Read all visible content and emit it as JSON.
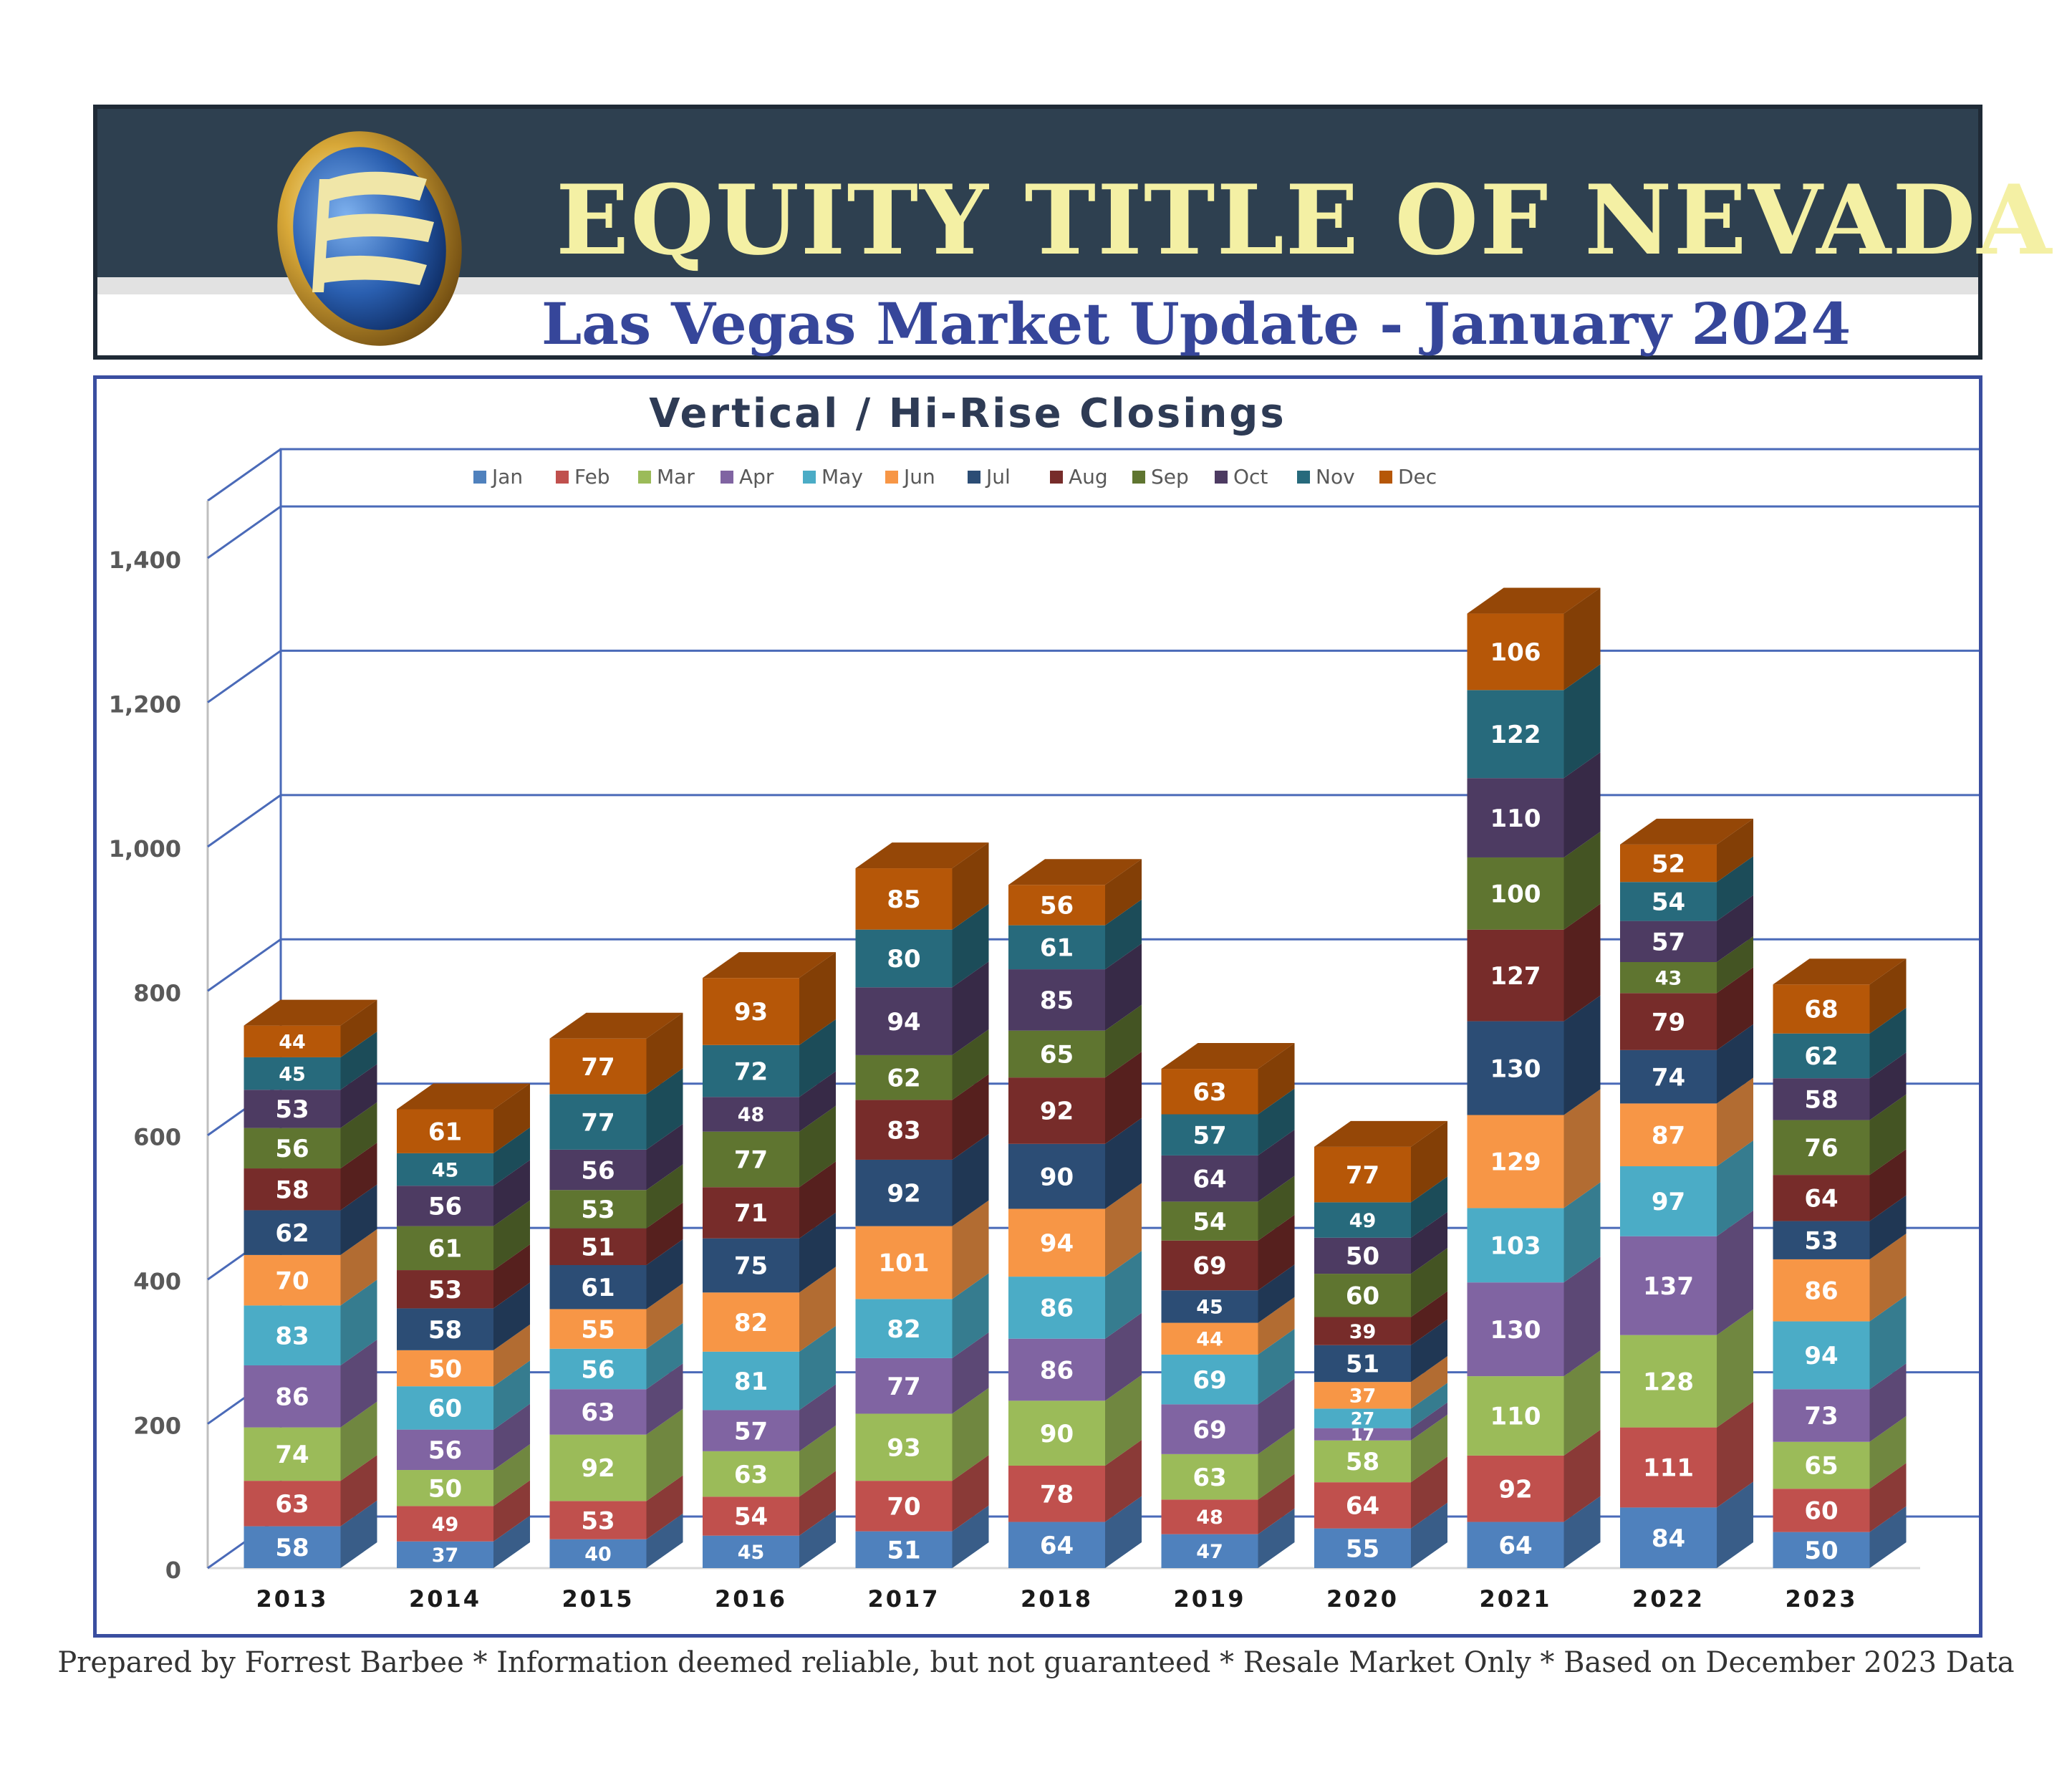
{
  "header": {
    "company_name": "EQUITY TITLE OF NEVADA",
    "report_title": "Las Vegas Market Update - January 2024"
  },
  "footer": {
    "text": "Prepared by Forrest Barbee * Information deemed reliable, but not guaranteed * Resale Market Only * Based on December 2023 Data"
  },
  "colors": {
    "header_band": "#2e4050",
    "title_text": "#f4f0a4",
    "subtitle_text": "#36469a",
    "frame": "#3a4ea0",
    "grid": "#4a6ab8"
  },
  "chart_data": {
    "type": "bar",
    "stacked": true,
    "title": "Vertical / Hi-Rise Closings",
    "xlabel": "",
    "ylabel": "",
    "ylim": [
      0,
      1400
    ],
    "yticks": [
      "0",
      "200",
      "400",
      "600",
      "800",
      "1,000",
      "1,200",
      "1,400"
    ],
    "grid": true,
    "legend_position": "top",
    "categories": [
      "2013",
      "2014",
      "2015",
      "2016",
      "2017",
      "2018",
      "2019",
      "2020",
      "2021",
      "2022",
      "2023"
    ],
    "series": [
      {
        "name": "Jan",
        "color": "#4f81bd",
        "values": [
          58,
          37,
          40,
          45,
          51,
          64,
          47,
          55,
          64,
          84,
          50
        ]
      },
      {
        "name": "Feb",
        "color": "#c0504d",
        "values": [
          63,
          49,
          53,
          54,
          70,
          78,
          48,
          64,
          92,
          111,
          60
        ]
      },
      {
        "name": "Mar",
        "color": "#9bbb59",
        "values": [
          74,
          50,
          92,
          63,
          93,
          90,
          63,
          58,
          110,
          128,
          65
        ]
      },
      {
        "name": "Apr",
        "color": "#8064a2",
        "values": [
          86,
          56,
          63,
          57,
          77,
          86,
          69,
          17,
          130,
          137,
          73
        ]
      },
      {
        "name": "May",
        "color": "#4bacc6",
        "values": [
          83,
          60,
          56,
          81,
          82,
          86,
          69,
          27,
          103,
          97,
          94
        ]
      },
      {
        "name": "Jun",
        "color": "#f79646",
        "values": [
          70,
          50,
          55,
          82,
          101,
          94,
          44,
          37,
          129,
          87,
          86
        ]
      },
      {
        "name": "Jul",
        "color": "#2c4d75",
        "values": [
          62,
          58,
          61,
          75,
          92,
          90,
          45,
          51,
          130,
          74,
          53
        ]
      },
      {
        "name": "Aug",
        "color": "#772c2a",
        "values": [
          58,
          53,
          51,
          71,
          83,
          92,
          69,
          39,
          127,
          79,
          64
        ]
      },
      {
        "name": "Sep",
        "color": "#5f7530",
        "values": [
          56,
          61,
          53,
          77,
          62,
          65,
          54,
          60,
          100,
          43,
          76
        ]
      },
      {
        "name": "Oct",
        "color": "#4d3b62",
        "values": [
          53,
          56,
          56,
          48,
          94,
          85,
          64,
          50,
          110,
          57,
          58
        ]
      },
      {
        "name": "Nov",
        "color": "#276a7c",
        "values": [
          45,
          45,
          77,
          72,
          80,
          61,
          57,
          49,
          122,
          54,
          62
        ]
      },
      {
        "name": "Dec",
        "color": "#b65708",
        "values": [
          44,
          61,
          77,
          93,
          85,
          56,
          63,
          77,
          106,
          52,
          68
        ]
      }
    ]
  }
}
